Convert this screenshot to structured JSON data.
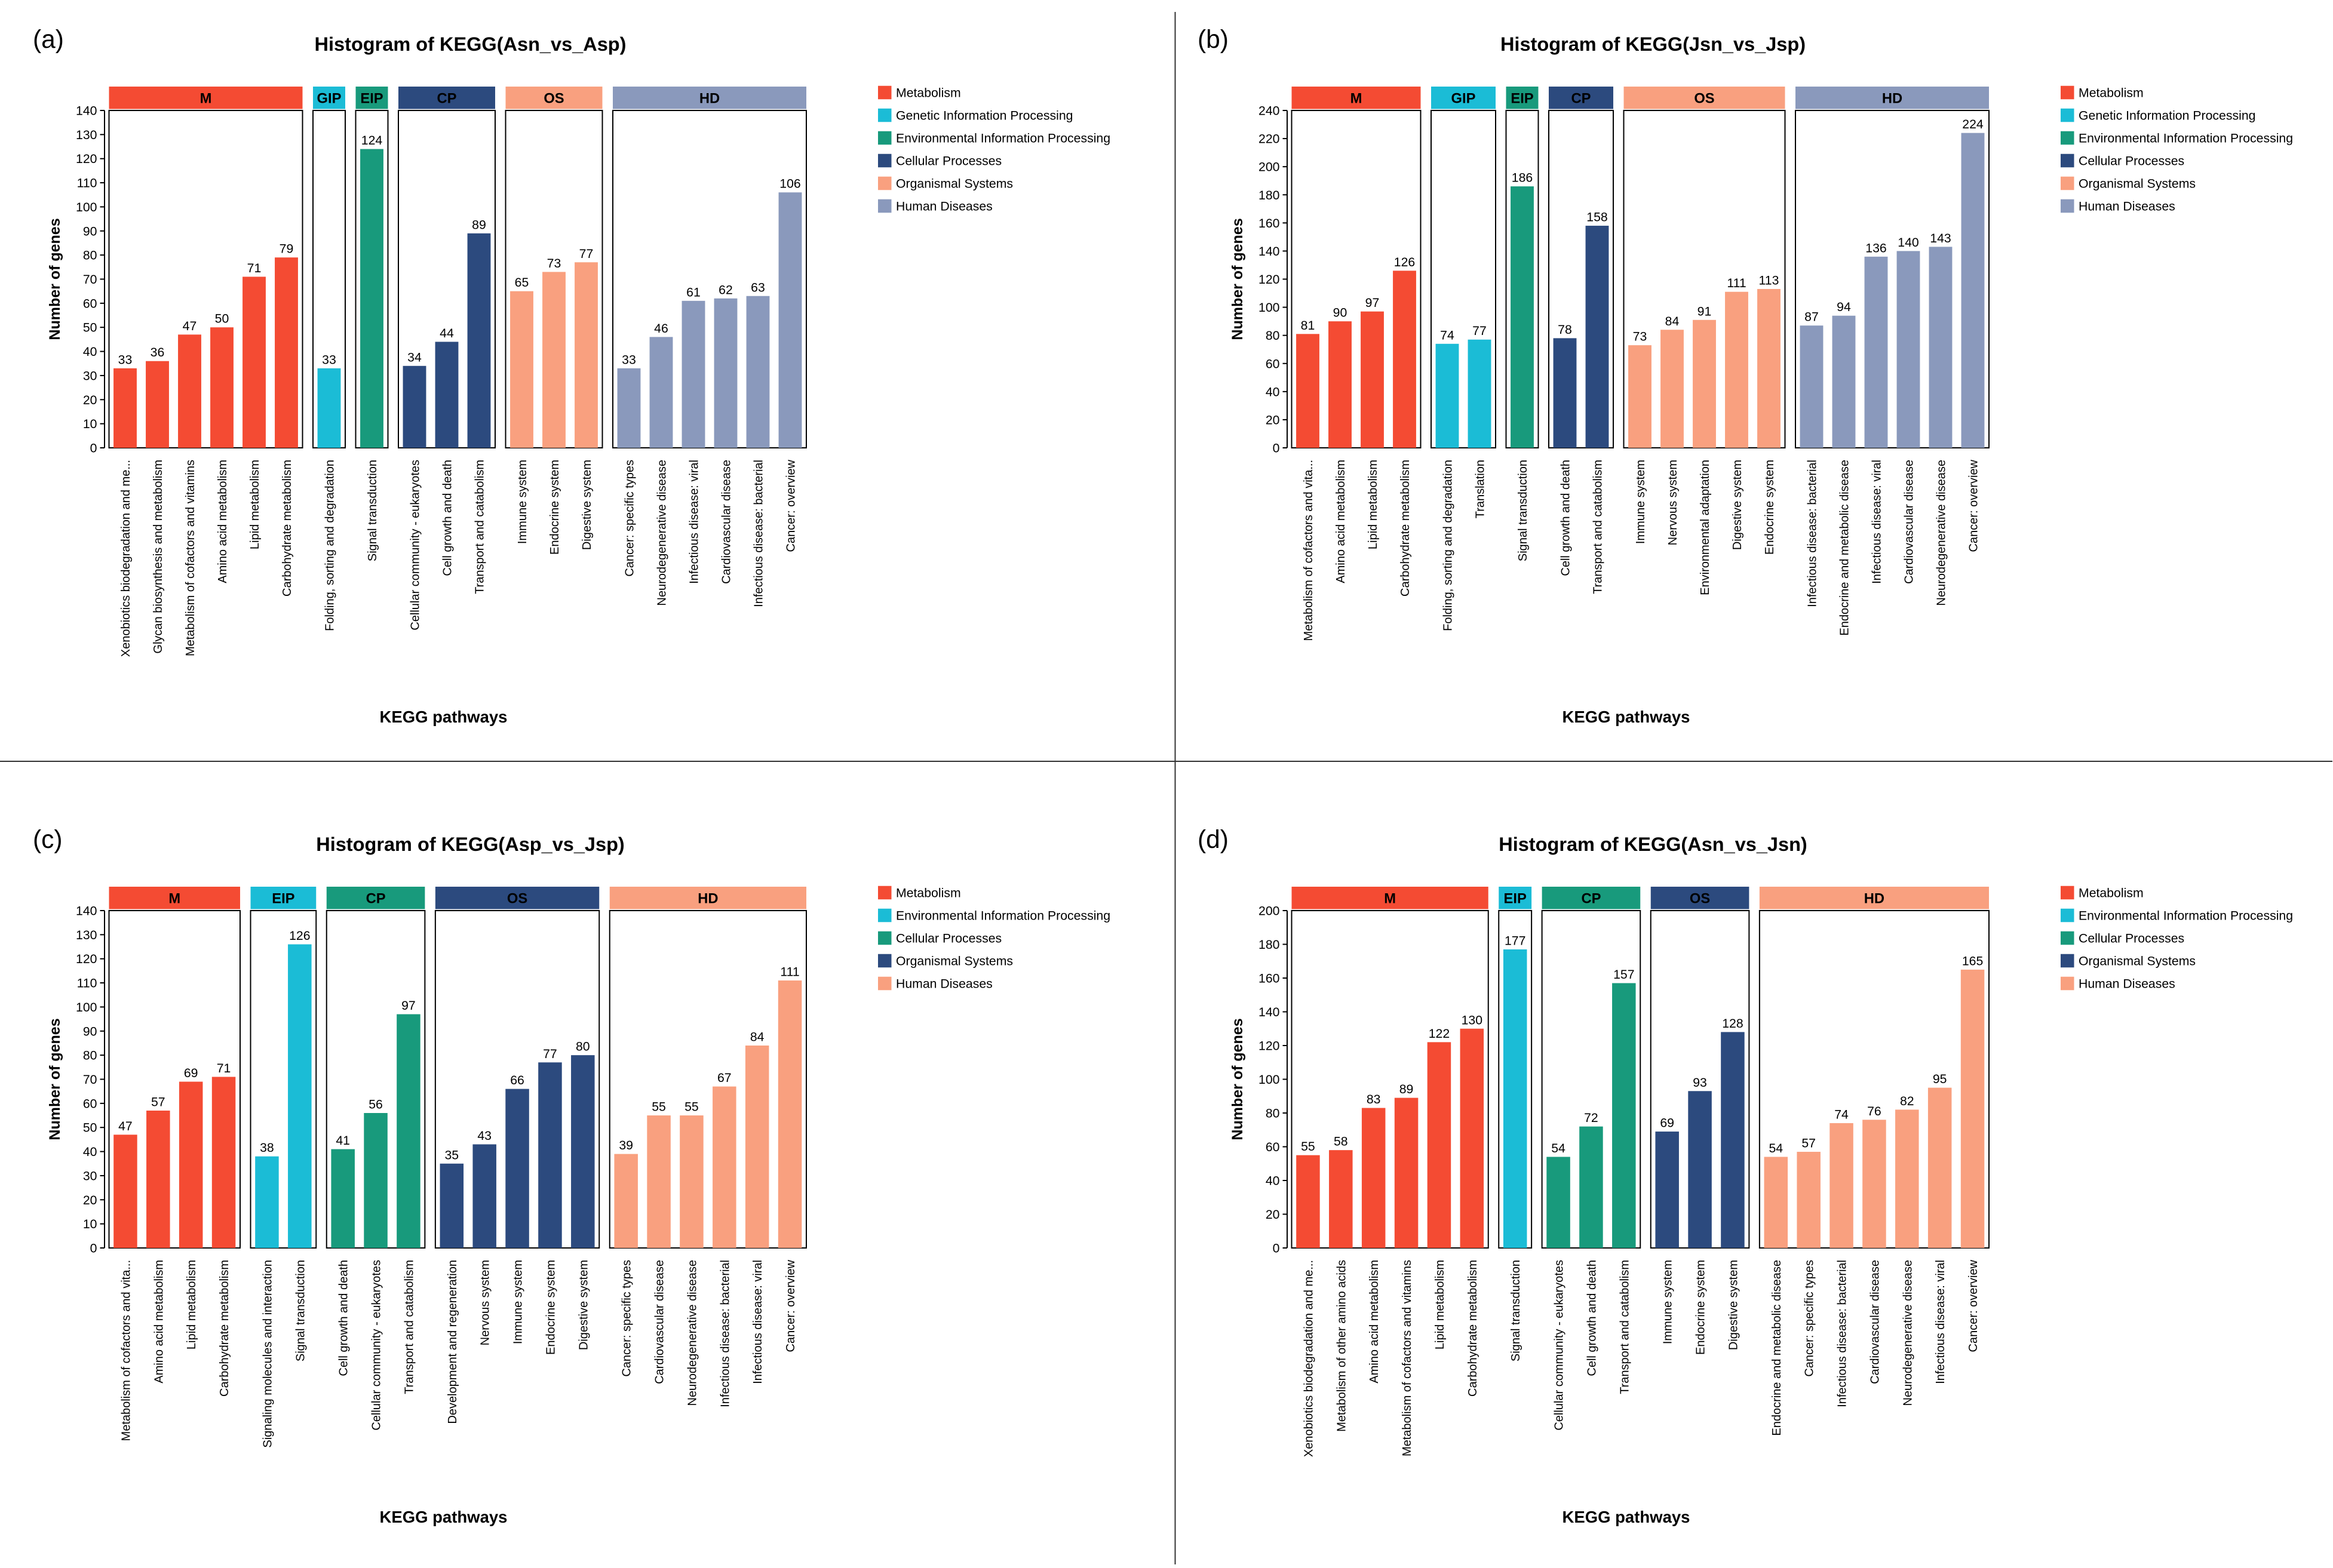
{
  "chart_data": [
    {
      "type": "bar",
      "panel": "(a)",
      "title": "Histogram of KEGG(Asn_vs_Asp)",
      "xlabel": "KEGG pathways",
      "ylabel": "Number of genes",
      "ylim": [
        0,
        140
      ],
      "yticks": [
        0,
        10,
        20,
        30,
        40,
        50,
        60,
        70,
        80,
        90,
        100,
        110,
        120,
        130,
        140
      ],
      "groups": [
        {
          "label": "M",
          "name": "Metabolism",
          "color": "#f44b33",
          "categories": [
            "Xenobiotics biodegradation and me...",
            "Glycan biosynthesis and metabolism",
            "Metabolism of cofactors and vitamins",
            "Amino acid metabolism",
            "Lipid metabolism",
            "Carbohydrate metabolism"
          ],
          "values": [
            33,
            36,
            47,
            50,
            71,
            79
          ]
        },
        {
          "label": "GIP",
          "name": "Genetic Information Processing",
          "color": "#1bbcd6",
          "categories": [
            "Folding, sorting and degradation"
          ],
          "values": [
            33
          ]
        },
        {
          "label": "EIP",
          "name": "Environmental Information Processing",
          "color": "#189a7c",
          "categories": [
            "Signal transduction"
          ],
          "values": [
            124
          ]
        },
        {
          "label": "CP",
          "name": "Cellular Processes",
          "color": "#2c4a7e",
          "categories": [
            "Cellular community - eukaryotes",
            "Cell growth and death",
            "Transport and catabolism"
          ],
          "values": [
            34,
            44,
            89
          ]
        },
        {
          "label": "OS",
          "name": "Organismal Systems",
          "color": "#f9a07f",
          "categories": [
            "Immune system",
            "Endocrine system",
            "Digestive system"
          ],
          "values": [
            65,
            73,
            77
          ]
        },
        {
          "label": "HD",
          "name": "Human Diseases",
          "color": "#8a99bc",
          "categories": [
            "Cancer: specific types",
            "Neurodegenerative disease",
            "Infectious disease: viral",
            "Cardiovascular disease",
            "Infectious disease: bacterial",
            "Cancer: overview"
          ],
          "values": [
            33,
            46,
            61,
            62,
            63,
            106
          ]
        }
      ]
    },
    {
      "type": "bar",
      "panel": "(b)",
      "title": "Histogram of KEGG(Jsn_vs_Jsp)",
      "xlabel": "KEGG pathways",
      "ylabel": "Number of genes",
      "ylim": [
        0,
        240
      ],
      "yticks": [
        0,
        20,
        40,
        60,
        80,
        100,
        120,
        140,
        160,
        180,
        200,
        220,
        240
      ],
      "groups": [
        {
          "label": "M",
          "name": "Metabolism",
          "color": "#f44b33",
          "categories": [
            "Metabolism of cofactors and vita...",
            "Amino acid metabolism",
            "Lipid metabolism",
            "Carbohydrate metabolism"
          ],
          "values": [
            81,
            90,
            97,
            126
          ]
        },
        {
          "label": "GIP",
          "name": "Genetic Information Processing",
          "color": "#1bbcd6",
          "categories": [
            "Folding, sorting and degradation",
            "Translation"
          ],
          "values": [
            74,
            77
          ]
        },
        {
          "label": "EIP",
          "name": "Environmental Information Processing",
          "color": "#189a7c",
          "categories": [
            "Signal transduction"
          ],
          "values": [
            186
          ]
        },
        {
          "label": "CP",
          "name": "Cellular Processes",
          "color": "#2c4a7e",
          "categories": [
            "Cell growth and death",
            "Transport and catabolism"
          ],
          "values": [
            78,
            158
          ]
        },
        {
          "label": "OS",
          "name": "Organismal Systems",
          "color": "#f9a07f",
          "categories": [
            "Immune system",
            "Nervous system",
            "Environmental adaptation",
            "Digestive system",
            "Endocrine system"
          ],
          "values": [
            73,
            84,
            91,
            111,
            113
          ]
        },
        {
          "label": "HD",
          "name": "Human Diseases",
          "color": "#8a99bc",
          "categories": [
            "Infectious disease: bacterial",
            "Endocrine and metabolic disease",
            "Infectious disease: viral",
            "Cardiovascular disease",
            "Neurodegenerative disease",
            "Cancer: overview"
          ],
          "values": [
            87,
            94,
            136,
            140,
            143,
            224
          ]
        }
      ]
    },
    {
      "type": "bar",
      "panel": "(c)",
      "title": "Histogram of KEGG(Asp_vs_Jsp)",
      "xlabel": "KEGG pathways",
      "ylabel": "Number of genes",
      "ylim": [
        0,
        140
      ],
      "yticks": [
        0,
        10,
        20,
        30,
        40,
        50,
        60,
        70,
        80,
        90,
        100,
        110,
        120,
        130,
        140
      ],
      "groups": [
        {
          "label": "M",
          "name": "Metabolism",
          "color": "#f44b33",
          "categories": [
            "Metabolism of cofactors and vita...",
            "Amino acid metabolism",
            "Lipid metabolism",
            "Carbohydrate metabolism"
          ],
          "values": [
            47,
            57,
            69,
            71
          ]
        },
        {
          "label": "EIP",
          "name": "Environmental Information Processing",
          "color": "#1bbcd6",
          "categories": [
            "Signaling molecules and interaction",
            "Signal transduction"
          ],
          "values": [
            38,
            126
          ]
        },
        {
          "label": "CP",
          "name": "Cellular Processes",
          "color": "#189a7c",
          "categories": [
            "Cell growth and death",
            "Cellular community - eukaryotes",
            "Transport and catabolism"
          ],
          "values": [
            41,
            56,
            97
          ]
        },
        {
          "label": "OS",
          "name": "Organismal Systems",
          "color": "#2c4a7e",
          "categories": [
            "Development and regeneration",
            "Nervous system",
            "Immune system",
            "Endocrine system",
            "Digestive system"
          ],
          "values": [
            35,
            43,
            66,
            77,
            80
          ]
        },
        {
          "label": "HD",
          "name": "Human Diseases",
          "color": "#f9a07f",
          "categories": [
            "Cancer: specific types",
            "Cardiovascular disease",
            "Neurodegenerative disease",
            "Infectious disease: bacterial",
            "Infectious disease: viral",
            "Cancer: overview"
          ],
          "values": [
            39,
            55,
            55,
            67,
            84,
            111
          ]
        }
      ]
    },
    {
      "type": "bar",
      "panel": "(d)",
      "title": "Histogram of KEGG(Asn_vs_Jsn)",
      "xlabel": "KEGG pathways",
      "ylabel": "Number of genes",
      "ylim": [
        0,
        200
      ],
      "yticks": [
        0,
        20,
        40,
        60,
        80,
        100,
        120,
        140,
        160,
        180,
        200
      ],
      "groups": [
        {
          "label": "M",
          "name": "Metabolism",
          "color": "#f44b33",
          "categories": [
            "Xenobiotics biodegradation and me...",
            "Metabolism of other amino acids",
            "Amino acid metabolism",
            "Metabolism of cofactors and vitamins",
            "Lipid metabolism",
            "Carbohydrate metabolism"
          ],
          "values": [
            55,
            58,
            83,
            89,
            122,
            130
          ]
        },
        {
          "label": "EIP",
          "name": "Environmental Information Processing",
          "color": "#1bbcd6",
          "categories": [
            "Signal transduction"
          ],
          "values": [
            177
          ]
        },
        {
          "label": "CP",
          "name": "Cellular Processes",
          "color": "#189a7c",
          "categories": [
            "Cellular community - eukaryotes",
            "Cell growth and death",
            "Transport and catabolism"
          ],
          "values": [
            54,
            72,
            157
          ]
        },
        {
          "label": "OS",
          "name": "Organismal Systems",
          "color": "#2c4a7e",
          "categories": [
            "Immune system",
            "Endocrine system",
            "Digestive system"
          ],
          "values": [
            69,
            93,
            128
          ]
        },
        {
          "label": "HD",
          "name": "Human Diseases",
          "color": "#f9a07f",
          "categories": [
            "Endocrine and metabolic disease",
            "Cancer: specific types",
            "Infectious disease: bacterial",
            "Cardiovascular disease",
            "Neurodegenerative disease",
            "Infectious disease: viral",
            "Cancer: overview"
          ],
          "values": [
            54,
            57,
            74,
            76,
            82,
            95,
            165
          ]
        }
      ]
    }
  ]
}
